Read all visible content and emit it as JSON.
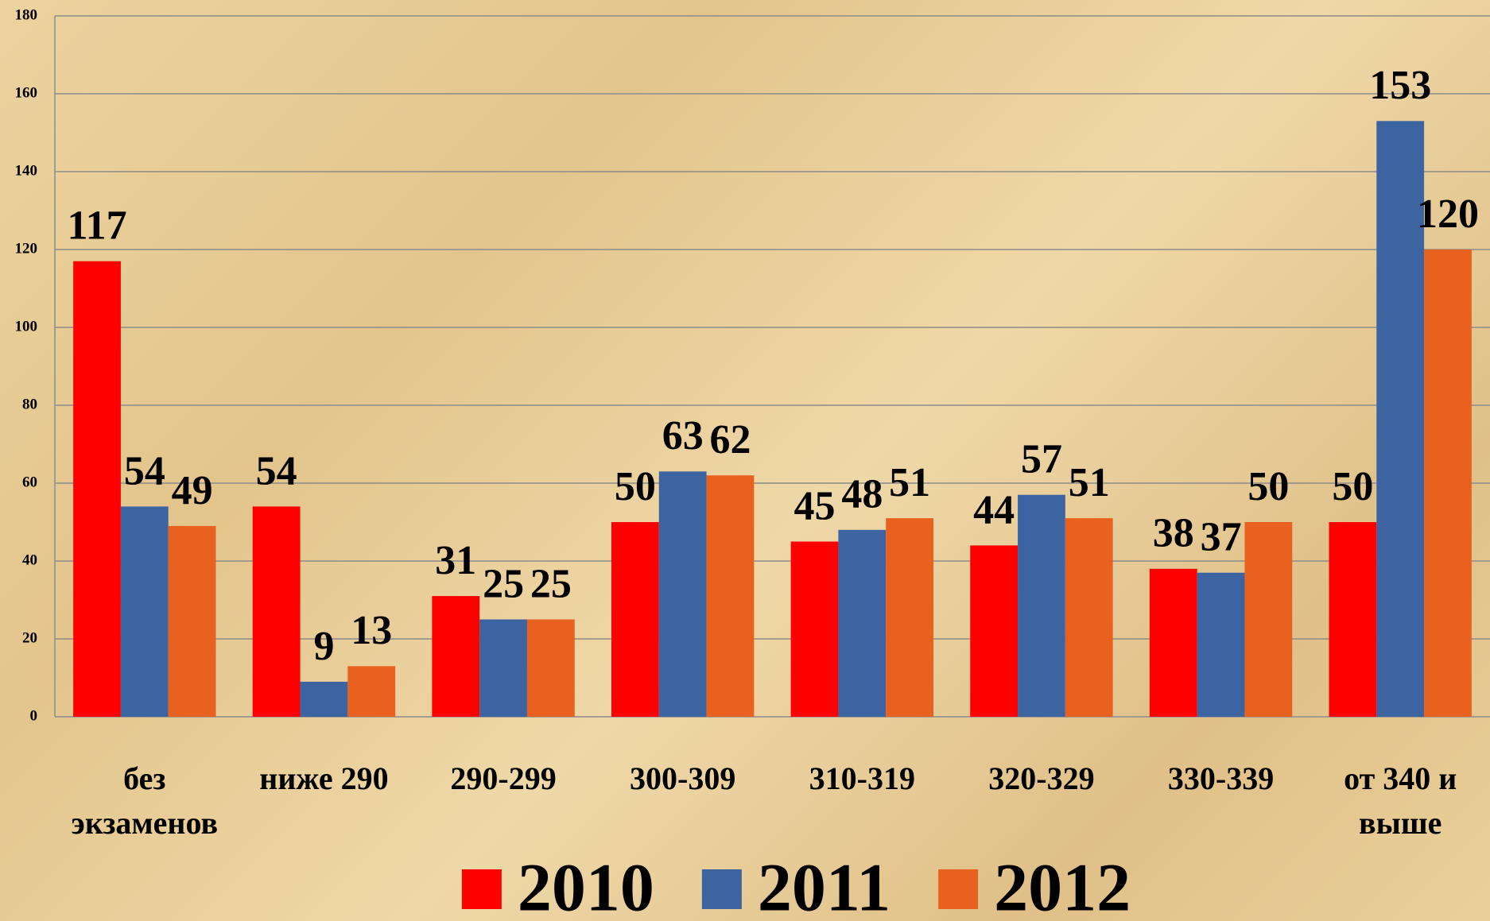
{
  "chart_data": {
    "type": "bar",
    "categories": [
      "без экзаменов",
      "ниже 290",
      "290-299",
      "300-309",
      "310-319",
      "320-329",
      "330-339",
      "от 340 и выше"
    ],
    "series": [
      {
        "name": "2010",
        "color": "#ff0000",
        "values": [
          117,
          54,
          31,
          50,
          45,
          44,
          38,
          50
        ]
      },
      {
        "name": "2011",
        "color": "#3b64a1",
        "values": [
          54,
          9,
          25,
          63,
          48,
          57,
          37,
          153
        ]
      },
      {
        "name": "2012",
        "color": "#e9611f",
        "values": [
          49,
          13,
          25,
          62,
          51,
          51,
          50,
          120
        ]
      }
    ],
    "ylim": [
      0,
      180
    ],
    "yticks": [
      0,
      20,
      40,
      60,
      80,
      100,
      120,
      140,
      160,
      180
    ],
    "grid": true,
    "legend": "bottom"
  }
}
